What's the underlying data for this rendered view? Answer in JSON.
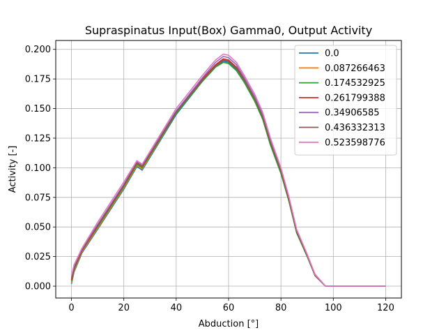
{
  "chart_data": {
    "type": "line",
    "title": "Supraspinatus Input(Box) Gamma0, Output Activity",
    "xlabel": "Abduction [°]",
    "ylabel": "Activity [-]",
    "xlim": [
      -6,
      126
    ],
    "ylim": [
      -0.01,
      0.2075
    ],
    "xticks": [
      0,
      20,
      40,
      60,
      80,
      100,
      120
    ],
    "xtick_labels": [
      "0",
      "20",
      "40",
      "60",
      "80",
      "100",
      "120"
    ],
    "yticks": [
      0.0,
      0.025,
      0.05,
      0.075,
      0.1,
      0.125,
      0.15,
      0.175,
      0.2
    ],
    "ytick_labels": [
      "0.000",
      "0.025",
      "0.050",
      "0.075",
      "0.100",
      "0.125",
      "0.150",
      "0.175",
      "0.200"
    ],
    "grid": true,
    "legend_position": "top-right",
    "x": [
      0,
      1,
      4,
      10,
      20,
      25,
      27,
      40,
      50,
      55,
      58,
      60,
      63,
      66,
      70,
      73,
      76,
      80,
      83,
      86,
      90,
      93,
      97,
      99,
      120
    ],
    "series": [
      {
        "name": "0.0",
        "color": "#1f77b4",
        "values": [
          0.002,
          0.012,
          0.028,
          0.048,
          0.082,
          0.101,
          0.098,
          0.145,
          0.173,
          0.185,
          0.19,
          0.189,
          0.183,
          0.173,
          0.157,
          0.142,
          0.12,
          0.096,
          0.073,
          0.045,
          0.026,
          0.009,
          0.0,
          0.0,
          0.0
        ]
      },
      {
        "name": "0.087266463",
        "color": "#ff7f0e",
        "values": [
          0.003,
          0.013,
          0.029,
          0.049,
          0.083,
          0.102,
          0.099,
          0.146,
          0.174,
          0.186,
          0.191,
          0.19,
          0.184,
          0.174,
          0.158,
          0.143,
          0.121,
          0.097,
          0.074,
          0.046,
          0.026,
          0.009,
          0.0,
          0.0,
          0.0
        ]
      },
      {
        "name": "0.174532925",
        "color": "#2ca02c",
        "values": [
          0.004,
          0.014,
          0.03,
          0.05,
          0.084,
          0.103,
          0.1,
          0.146,
          0.173,
          0.185,
          0.189,
          0.188,
          0.182,
          0.172,
          0.156,
          0.141,
          0.119,
          0.095,
          0.072,
          0.045,
          0.025,
          0.009,
          0.0,
          0.0,
          0.0
        ]
      },
      {
        "name": "0.261799388",
        "color": "#d62728",
        "values": [
          0.005,
          0.015,
          0.03,
          0.051,
          0.085,
          0.104,
          0.101,
          0.147,
          0.175,
          0.187,
          0.192,
          0.191,
          0.185,
          0.175,
          0.159,
          0.144,
          0.122,
          0.098,
          0.074,
          0.046,
          0.026,
          0.01,
          0.0,
          0.0,
          0.0
        ]
      },
      {
        "name": "0.34906585",
        "color": "#9467bd",
        "values": [
          0.007,
          0.016,
          0.031,
          0.052,
          0.086,
          0.105,
          0.102,
          0.148,
          0.176,
          0.189,
          0.194,
          0.193,
          0.187,
          0.176,
          0.16,
          0.145,
          0.123,
          0.099,
          0.075,
          0.047,
          0.027,
          0.01,
          0.0,
          0.0,
          0.0
        ]
      },
      {
        "name": "0.436332313",
        "color": "#8c564b",
        "values": [
          0.006,
          0.015,
          0.03,
          0.051,
          0.085,
          0.104,
          0.101,
          0.147,
          0.174,
          0.186,
          0.191,
          0.19,
          0.184,
          0.174,
          0.158,
          0.143,
          0.121,
          0.097,
          0.073,
          0.046,
          0.026,
          0.009,
          0.0,
          0.0,
          0.0
        ]
      },
      {
        "name": "0.523598776",
        "color": "#e377c2",
        "values": [
          0.009,
          0.018,
          0.032,
          0.054,
          0.088,
          0.106,
          0.103,
          0.15,
          0.178,
          0.191,
          0.196,
          0.195,
          0.189,
          0.178,
          0.162,
          0.147,
          0.125,
          0.1,
          0.076,
          0.048,
          0.027,
          0.01,
          0.0,
          0.0,
          0.0
        ]
      }
    ]
  }
}
